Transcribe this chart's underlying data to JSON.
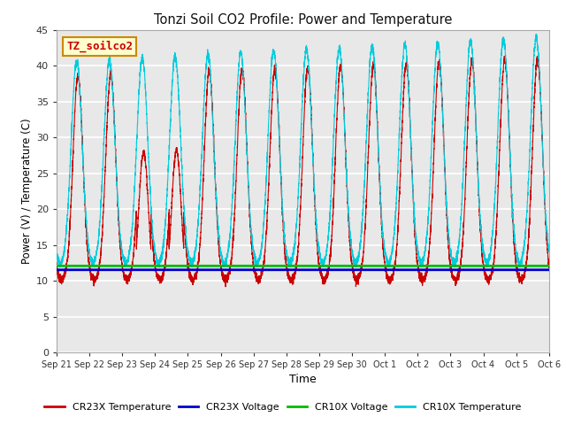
{
  "title": "Tonzi Soil CO2 Profile: Power and Temperature",
  "xlabel": "Time",
  "ylabel": "Power (V) / Temperature (C)",
  "ylim": [
    0,
    45
  ],
  "annotation_text": "TZ_soilco2",
  "annotation_box_facecolor": "#ffffcc",
  "annotation_text_color": "#cc0000",
  "annotation_border_color": "#cc8800",
  "cr23x_temp_color": "#cc0000",
  "cr23x_volt_color": "#0000cc",
  "cr10x_volt_color": "#00bb00",
  "cr10x_temp_color": "#00ccdd",
  "cr23x_volt_value": 11.55,
  "cr10x_volt_value": 12.1,
  "plot_bg_color": "#e8e8e8",
  "fig_bg_color": "#ffffff",
  "grid_color": "#ffffff",
  "tick_labels": [
    "Sep 21",
    "Sep 22",
    "Sep 23",
    "Sep 24",
    "Sep 25",
    "Sep 26",
    "Sep 27",
    "Sep 28",
    "Sep 29",
    "Sep 30",
    "Oct 1",
    "Oct 2",
    "Oct 3",
    "Oct 4",
    "Oct 5",
    "Oct 6"
  ],
  "legend_entries": [
    "CR23X Temperature",
    "CR23X Voltage",
    "CR10X Voltage",
    "CR10X Temperature"
  ]
}
